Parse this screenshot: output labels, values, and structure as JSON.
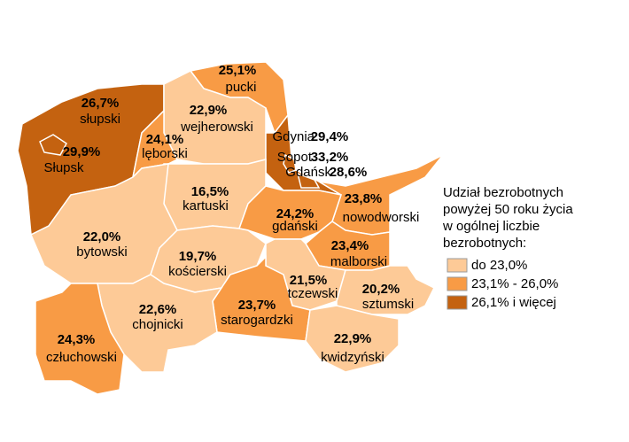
{
  "regions": [
    {
      "name": "pucki",
      "value": 25.1,
      "value_label": "25,1%",
      "color": "#f89b45"
    },
    {
      "name": "słupski",
      "value": 26.7,
      "value_label": "26,7%",
      "color": "#c46210"
    },
    {
      "name": "wejherowski",
      "value": 22.9,
      "value_label": "22,9%",
      "color": "#fdca97"
    },
    {
      "name": "Słupsk",
      "value": 29.9,
      "value_label": "29,9%",
      "color": "#c46210"
    },
    {
      "name": "lęborski",
      "value": 24.1,
      "value_label": "24,1%",
      "color": "#f89b45"
    },
    {
      "name": "Gdynia",
      "value": 29.4,
      "value_label": "29,4%",
      "color": "#c46210"
    },
    {
      "name": "Sopot",
      "value": 33.2,
      "value_label": "33,2%",
      "color": "#c46210"
    },
    {
      "name": "Gdańsk",
      "value": 28.6,
      "value_label": "28,6%",
      "color": "#c46210"
    },
    {
      "name": "nowodworski",
      "value": 23.8,
      "value_label": "23,8%",
      "color": "#f89b45"
    },
    {
      "name": "kartuski",
      "value": 16.5,
      "value_label": "16,5%",
      "color": "#fdca97"
    },
    {
      "name": "gdański",
      "value": 24.2,
      "value_label": "24,2%",
      "color": "#f89b45"
    },
    {
      "name": "bytowski",
      "value": 22.0,
      "value_label": "22,0%",
      "color": "#fdca97"
    },
    {
      "name": "malborski",
      "value": 23.4,
      "value_label": "23,4%",
      "color": "#f89b45"
    },
    {
      "name": "kościerski",
      "value": 19.7,
      "value_label": "19,7%",
      "color": "#fdca97"
    },
    {
      "name": "tczewski",
      "value": 21.5,
      "value_label": "21,5%",
      "color": "#fdca97"
    },
    {
      "name": "sztumski",
      "value": 20.2,
      "value_label": "20,2%",
      "color": "#fdca97"
    },
    {
      "name": "starogardzki",
      "value": 23.7,
      "value_label": "23,7%",
      "color": "#f89b45"
    },
    {
      "name": "chojnicki",
      "value": 22.6,
      "value_label": "22,6%",
      "color": "#fdca97"
    },
    {
      "name": "człuchowski",
      "value": 24.3,
      "value_label": "24,3%",
      "color": "#f89b45"
    },
    {
      "name": "kwidzyński",
      "value": 22.9,
      "value_label": "22,9%",
      "color": "#fdca97"
    }
  ],
  "legend": {
    "title": [
      "Udział bezrobotnych",
      "powyżej 50 roku życia",
      "w ogólnej liczbie",
      "bezrobotnych:"
    ],
    "items": [
      {
        "label": "do 23,0%",
        "color": "#fdca97"
      },
      {
        "label": "23,1% - 26,0%",
        "color": "#f89b45"
      },
      {
        "label": "26,1% i więcej",
        "color": "#c46210"
      }
    ]
  }
}
